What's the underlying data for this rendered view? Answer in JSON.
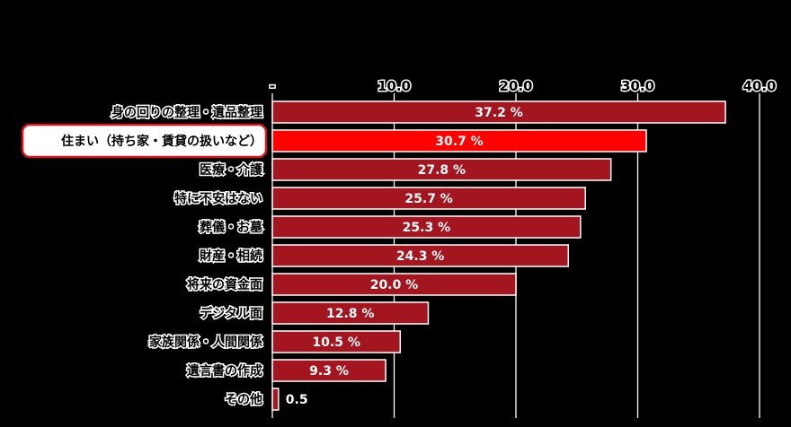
{
  "chart_data": {
    "type": "bar",
    "orientation": "horizontal",
    "title": "",
    "xlabel": "",
    "ylabel": "",
    "xlim": [
      0,
      40
    ],
    "ticks": [
      0,
      10,
      20,
      30,
      40
    ],
    "tick_labels": [
      "-",
      "10.0",
      "20.0",
      "30.0",
      "40.0"
    ],
    "grid": true,
    "categories": [
      "身の回りの整理・遺品整理",
      "住まい（持ち家・賃貸の扱いなど）",
      "医療・介護",
      "特に不安はない",
      "葬儀・お墓",
      "財産・相続",
      "将来の資金面",
      "デジタル面",
      "家族関係・人間関係",
      "遺言書の作成",
      "その他"
    ],
    "values": [
      37.2,
      30.7,
      27.8,
      25.7,
      25.3,
      24.3,
      20.0,
      12.8,
      10.5,
      9.3,
      0.5
    ],
    "value_labels": [
      "37.2 %",
      "30.7 %",
      "27.8 %",
      "25.7 %",
      "25.3 %",
      "24.3 %",
      "20.0 %",
      "12.8 %",
      "10.5 %",
      "9.3 %",
      "0.5"
    ],
    "highlight_index": 1,
    "colors": {
      "bar": "#a3151f",
      "highlight_bar": "#ff0000",
      "highlight_outline": "#d9141a",
      "grid": "#ffffff",
      "background": "#000000"
    }
  }
}
